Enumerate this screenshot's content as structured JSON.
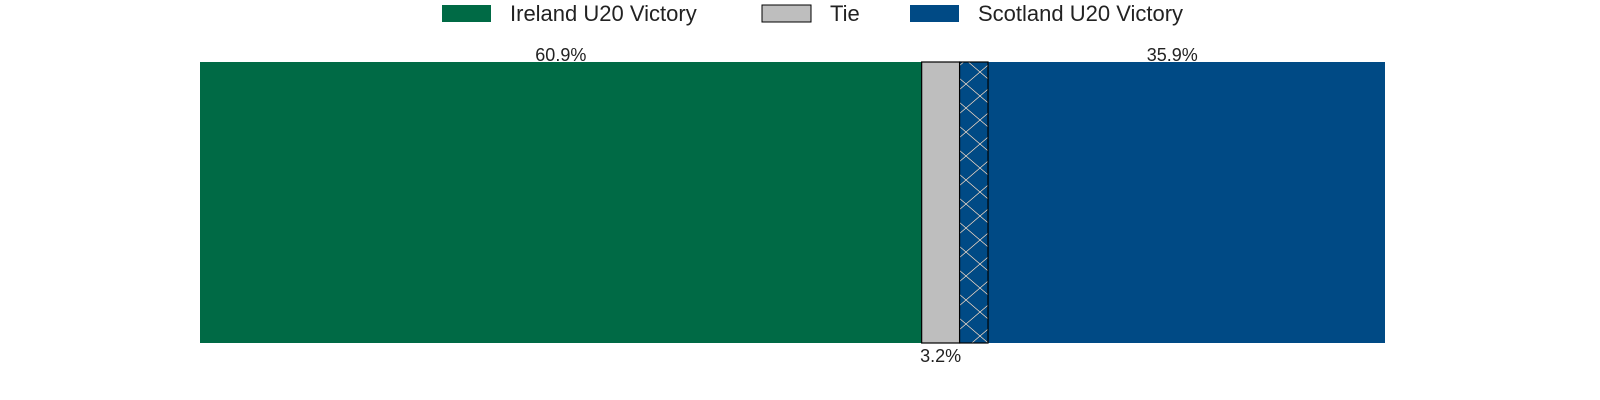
{
  "chart_data": {
    "type": "bar",
    "orientation": "horizontal-stacked",
    "xlim": [
      0,
      100
    ],
    "grid": false,
    "legend_placement": "top-center",
    "series": [
      {
        "name": "Ireland U20 Victory",
        "value": 60.9,
        "label": "60.9%",
        "color": "#006A45",
        "label_position": "top"
      },
      {
        "name": "Tie",
        "value": 3.2,
        "label": "3.2%",
        "color": "#BEBEBE",
        "label_position": "bottom"
      },
      {
        "name": "Scotland U20 Victory",
        "value": 35.9,
        "label": "35.9%",
        "color": "#004A85",
        "label_position": "top",
        "hatched_portion": 2.4
      }
    ]
  }
}
